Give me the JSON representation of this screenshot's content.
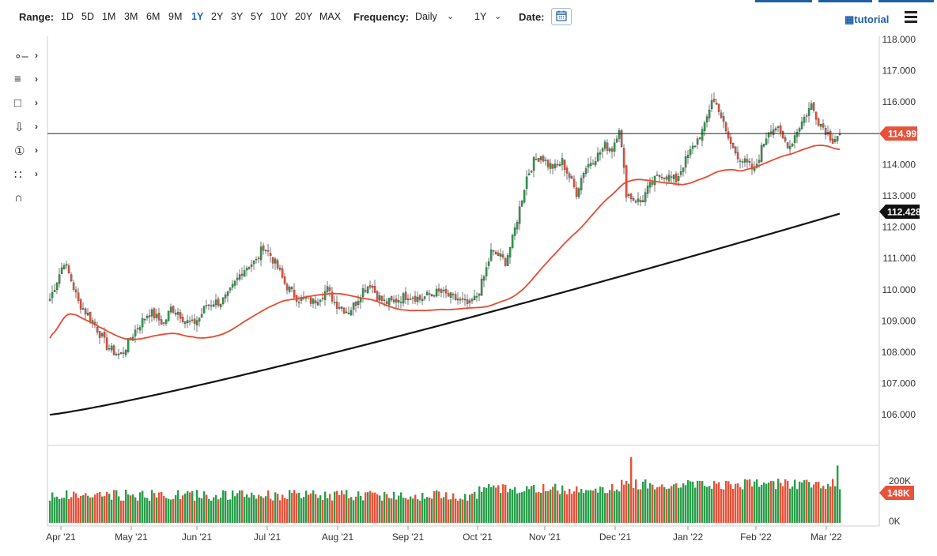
{
  "toolbar": {
    "range_label": "Range:",
    "ranges": [
      "1D",
      "5D",
      "1M",
      "3M",
      "6M",
      "9M",
      "1Y",
      "2Y",
      "3Y",
      "5Y",
      "10Y",
      "20Y",
      "MAX"
    ],
    "active_range": "1Y",
    "frequency_label": "Frequency:",
    "frequency_value": "Daily",
    "period_value": "1Y",
    "date_label": "Date:",
    "tutorial_label": "tutorial",
    "accent_color": "#1565c0"
  },
  "drawing_tools": [
    "line-tool-icon",
    "fib-tool-icon",
    "rectangle-tool-icon",
    "arrow-tool-icon",
    "count-tool-icon",
    "pattern-tool-icon",
    "magnet-tool-icon"
  ],
  "chart_data": {
    "type": "candlestick",
    "x_ticks": [
      "Apr '21",
      "May '21",
      "Jun '21",
      "Jul '21",
      "Aug '21",
      "Sep '21",
      "Oct '21",
      "Nov '21",
      "Dec '21",
      "Jan '22",
      "Feb '22",
      "Mar '22"
    ],
    "y_ticks": [
      "106.000",
      "107.000",
      "108.000",
      "109.000",
      "110.000",
      "111.000",
      "112.000",
      "113.000",
      "114.000",
      "115.000",
      "116.000",
      "117.000",
      "118.000"
    ],
    "ylim": [
      105.0,
      118.1
    ],
    "price_points": [
      [
        0,
        109.7
      ],
      [
        3,
        110.3
      ],
      [
        6,
        110.9
      ],
      [
        9,
        110.3
      ],
      [
        12,
        109.6
      ],
      [
        15,
        109.3
      ],
      [
        18,
        109.0
      ],
      [
        21,
        108.6
      ],
      [
        24,
        108.2
      ],
      [
        27,
        108.0
      ],
      [
        30,
        107.9
      ],
      [
        33,
        108.3
      ],
      [
        36,
        108.7
      ],
      [
        39,
        109.0
      ],
      [
        42,
        109.3
      ],
      [
        45,
        109.1
      ],
      [
        48,
        108.9
      ],
      [
        51,
        109.4
      ],
      [
        54,
        109.3
      ],
      [
        57,
        109.0
      ],
      [
        60,
        108.9
      ],
      [
        63,
        109.1
      ],
      [
        66,
        109.5
      ],
      [
        69,
        109.6
      ],
      [
        72,
        109.6
      ],
      [
        75,
        109.8
      ],
      [
        78,
        110.2
      ],
      [
        81,
        110.6
      ],
      [
        84,
        110.8
      ],
      [
        87,
        110.9
      ],
      [
        90,
        111.4
      ],
      [
        93,
        111.1
      ],
      [
        96,
        110.7
      ],
      [
        99,
        110.2
      ],
      [
        102,
        109.9
      ],
      [
        105,
        109.7
      ],
      [
        108,
        109.7
      ],
      [
        111,
        109.6
      ],
      [
        114,
        109.8
      ],
      [
        117,
        110.0
      ],
      [
        120,
        109.6
      ],
      [
        123,
        109.4
      ],
      [
        126,
        109.3
      ],
      [
        129,
        109.6
      ],
      [
        132,
        110.0
      ],
      [
        135,
        110.2
      ],
      [
        138,
        109.8
      ],
      [
        141,
        109.6
      ],
      [
        144,
        109.6
      ],
      [
        147,
        109.7
      ],
      [
        150,
        109.8
      ],
      [
        153,
        109.8
      ],
      [
        156,
        109.7
      ],
      [
        159,
        109.8
      ],
      [
        162,
        109.9
      ],
      [
        165,
        109.9
      ],
      [
        168,
        109.8
      ],
      [
        171,
        109.7
      ],
      [
        174,
        109.6
      ],
      [
        177,
        109.5
      ],
      [
        180,
        109.8
      ],
      [
        183,
        110.4
      ],
      [
        186,
        111.2
      ],
      [
        189,
        111.1
      ],
      [
        192,
        110.9
      ],
      [
        195,
        111.6
      ],
      [
        198,
        112.6
      ],
      [
        201,
        113.6
      ],
      [
        204,
        114.1
      ],
      [
        207,
        114.3
      ],
      [
        210,
        114.0
      ],
      [
        213,
        113.9
      ],
      [
        216,
        114.1
      ],
      [
        219,
        113.6
      ],
      [
        222,
        113.1
      ],
      [
        225,
        113.8
      ],
      [
        228,
        114.1
      ],
      [
        231,
        114.3
      ],
      [
        234,
        114.6
      ],
      [
        237,
        114.5
      ],
      [
        240,
        115.2
      ],
      [
        243,
        113.1
      ],
      [
        246,
        112.9
      ],
      [
        249,
        112.8
      ],
      [
        252,
        113.2
      ],
      [
        255,
        113.5
      ],
      [
        258,
        113.7
      ],
      [
        261,
        113.6
      ],
      [
        264,
        113.5
      ],
      [
        267,
        114.0
      ],
      [
        270,
        114.4
      ],
      [
        273,
        114.8
      ],
      [
        276,
        115.2
      ],
      [
        279,
        116.1
      ],
      [
        282,
        115.8
      ],
      [
        285,
        115.0
      ],
      [
        288,
        114.5
      ],
      [
        291,
        114.2
      ],
      [
        294,
        114.0
      ],
      [
        297,
        113.8
      ],
      [
        300,
        114.5
      ],
      [
        303,
        115.1
      ],
      [
        306,
        115.2
      ],
      [
        309,
        114.8
      ],
      [
        312,
        114.6
      ],
      [
        315,
        115.1
      ],
      [
        318,
        115.5
      ],
      [
        321,
        115.9
      ],
      [
        324,
        115.4
      ],
      [
        327,
        115.1
      ],
      [
        330,
        114.8
      ],
      [
        333,
        114.99
      ]
    ],
    "current_price": "114.991",
    "sma_label": "112.428",
    "volume_label": "148K",
    "volume_ticks": [
      "0K",
      "200K"
    ],
    "colors": {
      "up": "#2a9d4b",
      "down": "#e8513a",
      "sma50": "#e84a2f",
      "sma200": "#111111",
      "price_line": "#222222"
    }
  }
}
